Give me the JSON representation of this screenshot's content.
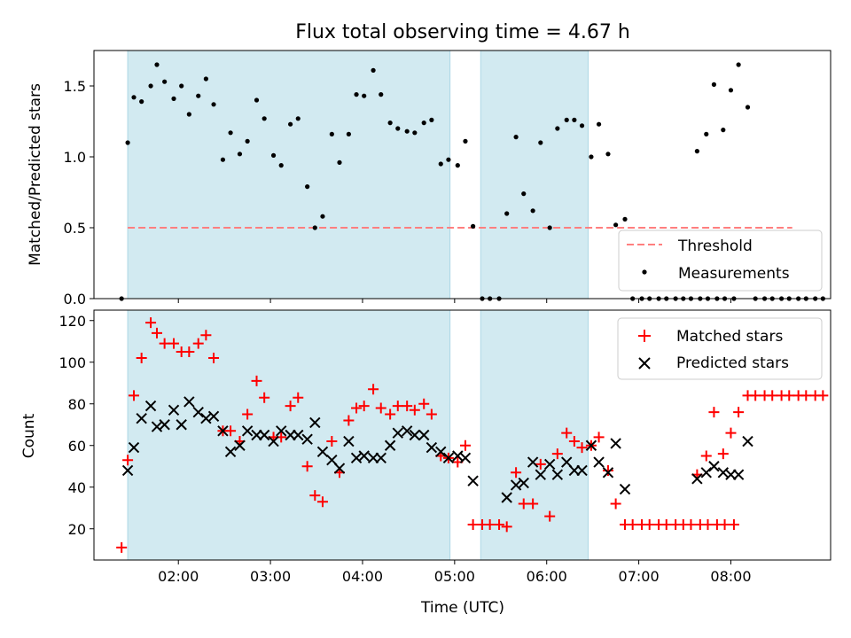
{
  "chart_data": [
    {
      "type": "scatter",
      "title": "Flux total observing time = 4.67 h",
      "xlabel": "",
      "ylabel": "Matched/Predicted stars",
      "xlim": [
        "01:05",
        "09:05"
      ],
      "ylim": [
        0,
        1.75
      ],
      "yticks": [
        "0.0",
        "0.5",
        "1.0",
        "1.5"
      ],
      "grid": false,
      "legend_position": "lower-right",
      "shaded_intervals": [
        {
          "start": "01:27",
          "end": "04:57",
          "color": "#add8e6"
        },
        {
          "start": "05:17",
          "end": "06:27",
          "color": "#add8e6"
        }
      ],
      "series": [
        {
          "name": "Threshold",
          "kind": "line",
          "style": "dashed",
          "color": "#ff7f7f",
          "points": [
            [
              "01:27",
              0.5
            ],
            [
              "08:40",
              0.5
            ]
          ]
        },
        {
          "name": "Measurements",
          "kind": "scatter",
          "marker": "dot",
          "color": "#000000",
          "points": [
            [
              "01:23",
              0.0
            ],
            [
              "01:27",
              1.1
            ],
            [
              "01:31",
              1.42
            ],
            [
              "01:36",
              1.39
            ],
            [
              "01:42",
              1.5
            ],
            [
              "01:46",
              1.65
            ],
            [
              "01:51",
              1.53
            ],
            [
              "01:57",
              1.41
            ],
            [
              "02:02",
              1.5
            ],
            [
              "02:07",
              1.3
            ],
            [
              "02:13",
              1.43
            ],
            [
              "02:18",
              1.55
            ],
            [
              "02:23",
              1.37
            ],
            [
              "02:29",
              0.98
            ],
            [
              "02:34",
              1.17
            ],
            [
              "02:40",
              1.02
            ],
            [
              "02:45",
              1.11
            ],
            [
              "02:51",
              1.4
            ],
            [
              "02:56",
              1.27
            ],
            [
              "03:02",
              1.01
            ],
            [
              "03:07",
              0.94
            ],
            [
              "03:13",
              1.23
            ],
            [
              "03:18",
              1.27
            ],
            [
              "03:24",
              0.79
            ],
            [
              "03:29",
              0.5
            ],
            [
              "03:34",
              0.58
            ],
            [
              "03:40",
              1.16
            ],
            [
              "03:45",
              0.96
            ],
            [
              "03:51",
              1.16
            ],
            [
              "03:56",
              1.44
            ],
            [
              "04:01",
              1.43
            ],
            [
              "04:07",
              1.61
            ],
            [
              "04:12",
              1.44
            ],
            [
              "04:18",
              1.24
            ],
            [
              "04:23",
              1.2
            ],
            [
              "04:29",
              1.18
            ],
            [
              "04:34",
              1.17
            ],
            [
              "04:40",
              1.24
            ],
            [
              "04:45",
              1.26
            ],
            [
              "04:51",
              0.95
            ],
            [
              "04:56",
              0.98
            ],
            [
              "05:02",
              0.94
            ],
            [
              "05:07",
              1.11
            ],
            [
              "05:12",
              0.51
            ],
            [
              "05:18",
              0.0
            ],
            [
              "05:23",
              0.0
            ],
            [
              "05:29",
              0.0
            ],
            [
              "05:34",
              0.6
            ],
            [
              "05:40",
              1.14
            ],
            [
              "05:45",
              0.74
            ],
            [
              "05:51",
              0.62
            ],
            [
              "05:56",
              1.1
            ],
            [
              "06:02",
              0.5
            ],
            [
              "06:07",
              1.2
            ],
            [
              "06:13",
              1.26
            ],
            [
              "06:18",
              1.26
            ],
            [
              "06:23",
              1.22
            ],
            [
              "06:29",
              1.0
            ],
            [
              "06:34",
              1.23
            ],
            [
              "06:40",
              1.02
            ],
            [
              "06:45",
              0.52
            ],
            [
              "06:51",
              0.56
            ],
            [
              "06:56",
              0.0
            ],
            [
              "07:02",
              0.0
            ],
            [
              "07:07",
              0.0
            ],
            [
              "07:13",
              0.0
            ],
            [
              "07:18",
              0.0
            ],
            [
              "07:24",
              0.0
            ],
            [
              "07:29",
              0.0
            ],
            [
              "07:34",
              0.0
            ],
            [
              "07:40",
              0.0
            ],
            [
              "07:45",
              0.0
            ],
            [
              "07:51",
              0.0
            ],
            [
              "07:56",
              0.0
            ],
            [
              "08:02",
              0.0
            ],
            [
              "07:38",
              1.04
            ],
            [
              "07:44",
              1.16
            ],
            [
              "07:49",
              1.51
            ],
            [
              "07:55",
              1.19
            ],
            [
              "08:00",
              1.47
            ],
            [
              "08:05",
              1.65
            ],
            [
              "08:11",
              1.35
            ],
            [
              "08:16",
              0.0
            ],
            [
              "08:22",
              0.0
            ],
            [
              "08:27",
              0.0
            ],
            [
              "08:33",
              0.0
            ],
            [
              "08:38",
              0.0
            ],
            [
              "08:44",
              0.0
            ],
            [
              "08:49",
              0.0
            ],
            [
              "08:55",
              0.0
            ],
            [
              "09:00",
              0.0
            ]
          ]
        }
      ]
    },
    {
      "type": "scatter",
      "title": "",
      "xlabel": "Time (UTC)",
      "ylabel": "Count",
      "xlim": [
        "01:05",
        "09:05"
      ],
      "ylim": [
        5,
        125
      ],
      "yticks": [
        "20",
        "40",
        "60",
        "80",
        "100",
        "120"
      ],
      "xticks": [
        "02:00",
        "03:00",
        "04:00",
        "05:00",
        "06:00",
        "07:00",
        "08:00"
      ],
      "grid": false,
      "legend_position": "upper-right",
      "shaded_intervals": [
        {
          "start": "01:27",
          "end": "04:57",
          "color": "#add8e6"
        },
        {
          "start": "05:17",
          "end": "06:27",
          "color": "#add8e6"
        }
      ],
      "series": [
        {
          "name": "Matched stars",
          "kind": "scatter",
          "marker": "plus",
          "color": "#ff0000",
          "points": [
            [
              "01:23",
              11
            ],
            [
              "01:27",
              53
            ],
            [
              "01:31",
              84
            ],
            [
              "01:36",
              102
            ],
            [
              "01:42",
              119
            ],
            [
              "01:46",
              114
            ],
            [
              "01:51",
              109
            ],
            [
              "01:57",
              109
            ],
            [
              "02:02",
              105
            ],
            [
              "02:07",
              105
            ],
            [
              "02:13",
              109
            ],
            [
              "02:18",
              113
            ],
            [
              "02:23",
              102
            ],
            [
              "02:29",
              67
            ],
            [
              "02:34",
              67
            ],
            [
              "02:40",
              62
            ],
            [
              "02:45",
              75
            ],
            [
              "02:51",
              91
            ],
            [
              "02:56",
              83
            ],
            [
              "03:02",
              64
            ],
            [
              "03:07",
              64
            ],
            [
              "03:13",
              79
            ],
            [
              "03:18",
              83
            ],
            [
              "03:24",
              50
            ],
            [
              "03:29",
              36
            ],
            [
              "03:34",
              33
            ],
            [
              "03:40",
              62
            ],
            [
              "03:45",
              47
            ],
            [
              "03:51",
              72
            ],
            [
              "03:56",
              78
            ],
            [
              "04:01",
              79
            ],
            [
              "04:07",
              87
            ],
            [
              "04:12",
              78
            ],
            [
              "04:18",
              75
            ],
            [
              "04:23",
              79
            ],
            [
              "04:29",
              79
            ],
            [
              "04:34",
              77
            ],
            [
              "04:40",
              80
            ],
            [
              "04:45",
              75
            ],
            [
              "04:51",
              55
            ],
            [
              "04:56",
              54
            ],
            [
              "05:02",
              52
            ],
            [
              "05:07",
              60
            ],
            [
              "05:12",
              22
            ],
            [
              "05:18",
              22
            ],
            [
              "05:23",
              22
            ],
            [
              "05:29",
              22
            ],
            [
              "05:34",
              21
            ],
            [
              "05:40",
              47
            ],
            [
              "05:45",
              32
            ],
            [
              "05:51",
              32
            ],
            [
              "05:56",
              51
            ],
            [
              "06:02",
              26
            ],
            [
              "06:07",
              56
            ],
            [
              "06:13",
              66
            ],
            [
              "06:18",
              62
            ],
            [
              "06:23",
              59
            ],
            [
              "06:29",
              60
            ],
            [
              "06:34",
              64
            ],
            [
              "06:40",
              48
            ],
            [
              "06:45",
              32
            ],
            [
              "06:51",
              22
            ],
            [
              "06:56",
              22
            ],
            [
              "07:02",
              22
            ],
            [
              "07:07",
              22
            ],
            [
              "07:13",
              22
            ],
            [
              "07:18",
              22
            ],
            [
              "07:24",
              22
            ],
            [
              "07:29",
              22
            ],
            [
              "07:34",
              22
            ],
            [
              "07:40",
              22
            ],
            [
              "07:45",
              22
            ],
            [
              "07:51",
              22
            ],
            [
              "07:56",
              22
            ],
            [
              "08:02",
              22
            ],
            [
              "07:38",
              46
            ],
            [
              "07:44",
              55
            ],
            [
              "07:49",
              76
            ],
            [
              "07:55",
              56
            ],
            [
              "08:00",
              66
            ],
            [
              "08:05",
              76
            ],
            [
              "08:11",
              84
            ],
            [
              "08:16",
              84
            ],
            [
              "08:22",
              84
            ],
            [
              "08:27",
              84
            ],
            [
              "08:33",
              84
            ],
            [
              "08:38",
              84
            ],
            [
              "08:44",
              84
            ],
            [
              "08:49",
              84
            ],
            [
              "08:55",
              84
            ],
            [
              "09:00",
              84
            ]
          ]
        },
        {
          "name": "Predicted stars",
          "kind": "scatter",
          "marker": "x",
          "color": "#000000",
          "points": [
            [
              "01:27",
              48
            ],
            [
              "01:31",
              59
            ],
            [
              "01:36",
              73
            ],
            [
              "01:42",
              79
            ],
            [
              "01:46",
              69
            ],
            [
              "01:51",
              70
            ],
            [
              "01:57",
              77
            ],
            [
              "02:02",
              70
            ],
            [
              "02:07",
              81
            ],
            [
              "02:13",
              76
            ],
            [
              "02:18",
              73
            ],
            [
              "02:23",
              74
            ],
            [
              "02:29",
              67
            ],
            [
              "02:34",
              57
            ],
            [
              "02:40",
              60
            ],
            [
              "02:45",
              67
            ],
            [
              "02:51",
              65
            ],
            [
              "02:56",
              65
            ],
            [
              "03:02",
              62
            ],
            [
              "03:07",
              67
            ],
            [
              "03:13",
              65
            ],
            [
              "03:18",
              65
            ],
            [
              "03:24",
              63
            ],
            [
              "03:29",
              71
            ],
            [
              "03:34",
              57
            ],
            [
              "03:40",
              53
            ],
            [
              "03:45",
              49
            ],
            [
              "03:51",
              62
            ],
            [
              "03:56",
              54
            ],
            [
              "04:01",
              55
            ],
            [
              "04:07",
              54
            ],
            [
              "04:12",
              54
            ],
            [
              "04:18",
              60
            ],
            [
              "04:23",
              66
            ],
            [
              "04:29",
              67
            ],
            [
              "04:34",
              65
            ],
            [
              "04:40",
              65
            ],
            [
              "04:45",
              59
            ],
            [
              "04:51",
              57
            ],
            [
              "04:56",
              54
            ],
            [
              "05:02",
              55
            ],
            [
              "05:07",
              54
            ],
            [
              "05:12",
              43
            ],
            [
              "05:34",
              35
            ],
            [
              "05:40",
              41
            ],
            [
              "05:45",
              42
            ],
            [
              "05:51",
              52
            ],
            [
              "05:56",
              46
            ],
            [
              "06:02",
              51
            ],
            [
              "06:07",
              46
            ],
            [
              "06:13",
              52
            ],
            [
              "06:18",
              48
            ],
            [
              "06:23",
              48
            ],
            [
              "06:29",
              60
            ],
            [
              "06:34",
              52
            ],
            [
              "06:40",
              47
            ],
            [
              "06:45",
              61
            ],
            [
              "06:51",
              39
            ],
            [
              "07:38",
              44
            ],
            [
              "07:44",
              47
            ],
            [
              "07:49",
              50
            ],
            [
              "07:55",
              47
            ],
            [
              "08:00",
              46
            ],
            [
              "08:05",
              46
            ],
            [
              "08:11",
              62
            ]
          ]
        }
      ]
    }
  ]
}
